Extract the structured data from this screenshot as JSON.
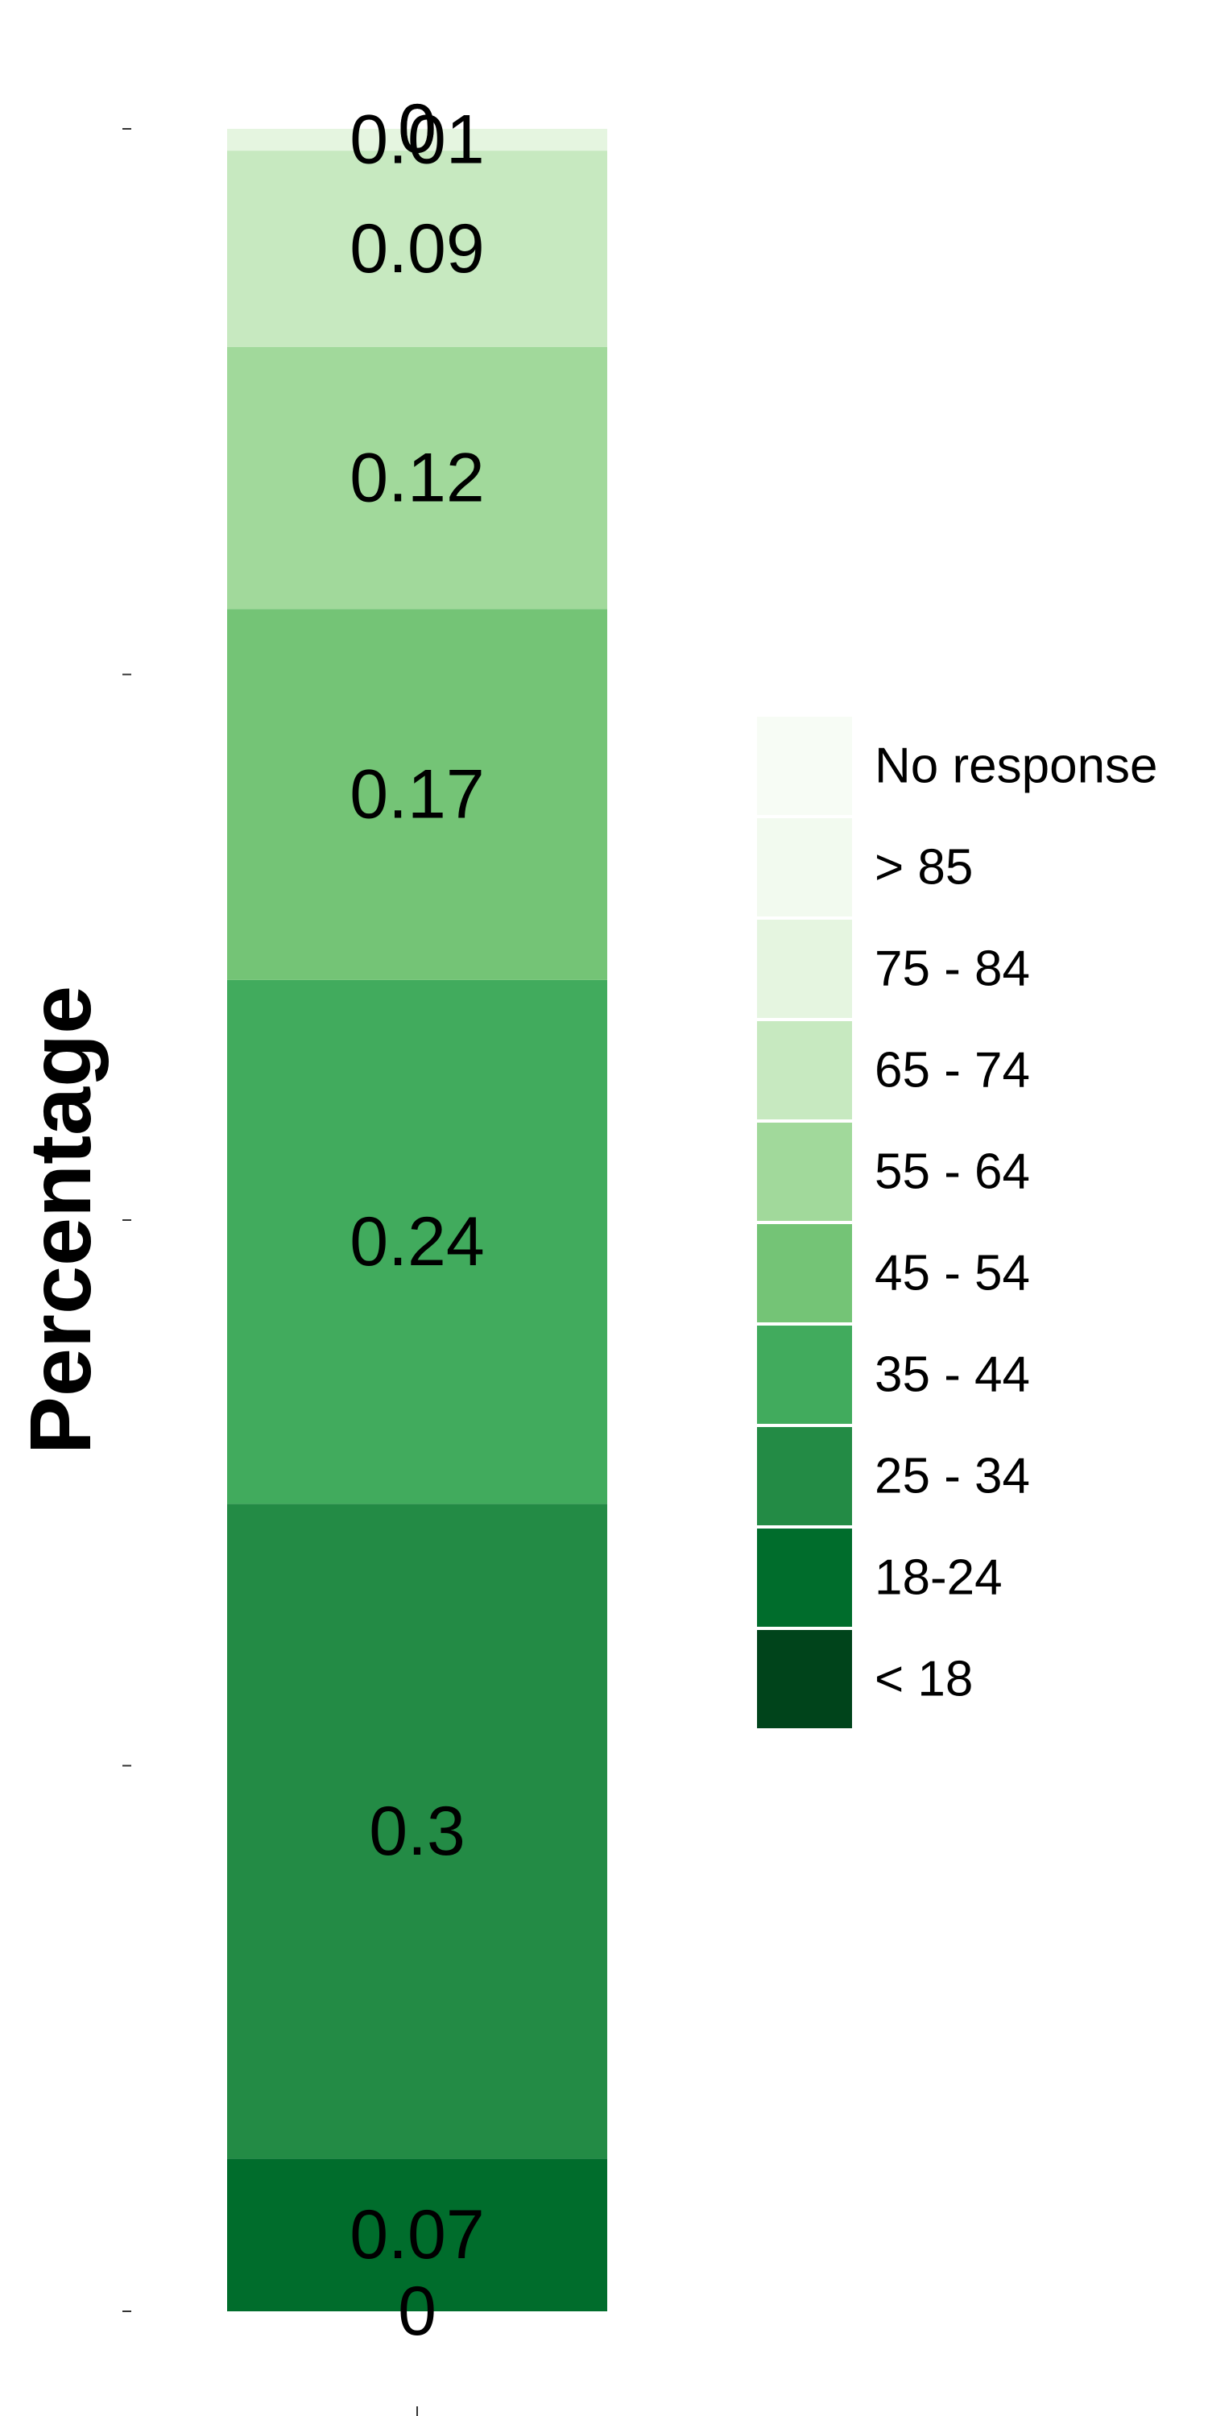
{
  "chart_data": {
    "type": "bar",
    "stacked": true,
    "orientation": "vertical",
    "ylabel": "Percentage",
    "xlabel": "",
    "ylim": [
      0,
      1
    ],
    "grid": false,
    "legend_position": "right",
    "series": [
      {
        "name": "< 18",
        "value": 0,
        "color": "#00441b"
      },
      {
        "name": "18-24",
        "value": 0.07,
        "color": "#006d2c"
      },
      {
        "name": "25 - 34",
        "value": 0.3,
        "color": "#238b45"
      },
      {
        "name": "35 - 44",
        "value": 0.24,
        "color": "#41ab5d"
      },
      {
        "name": "45 - 54",
        "value": 0.17,
        "color": "#74c476"
      },
      {
        "name": "55 - 64",
        "value": 0.12,
        "color": "#a1d99b"
      },
      {
        "name": "65 - 74",
        "value": 0.09,
        "color": "#c7e9c0"
      },
      {
        "name": "75 - 84",
        "value": 0.01,
        "color": "#e5f5e0"
      },
      {
        "name": "> 85",
        "value": 0,
        "color": "#f2faef"
      },
      {
        "name": "No response",
        "value": 0,
        "color": "#f7fcf5"
      }
    ],
    "legend_order": [
      "No response",
      "> 85",
      "75 - 84",
      "65 - 74",
      "55 - 64",
      "45 - 54",
      "35 - 44",
      "25 - 34",
      "18-24",
      "< 18"
    ]
  }
}
